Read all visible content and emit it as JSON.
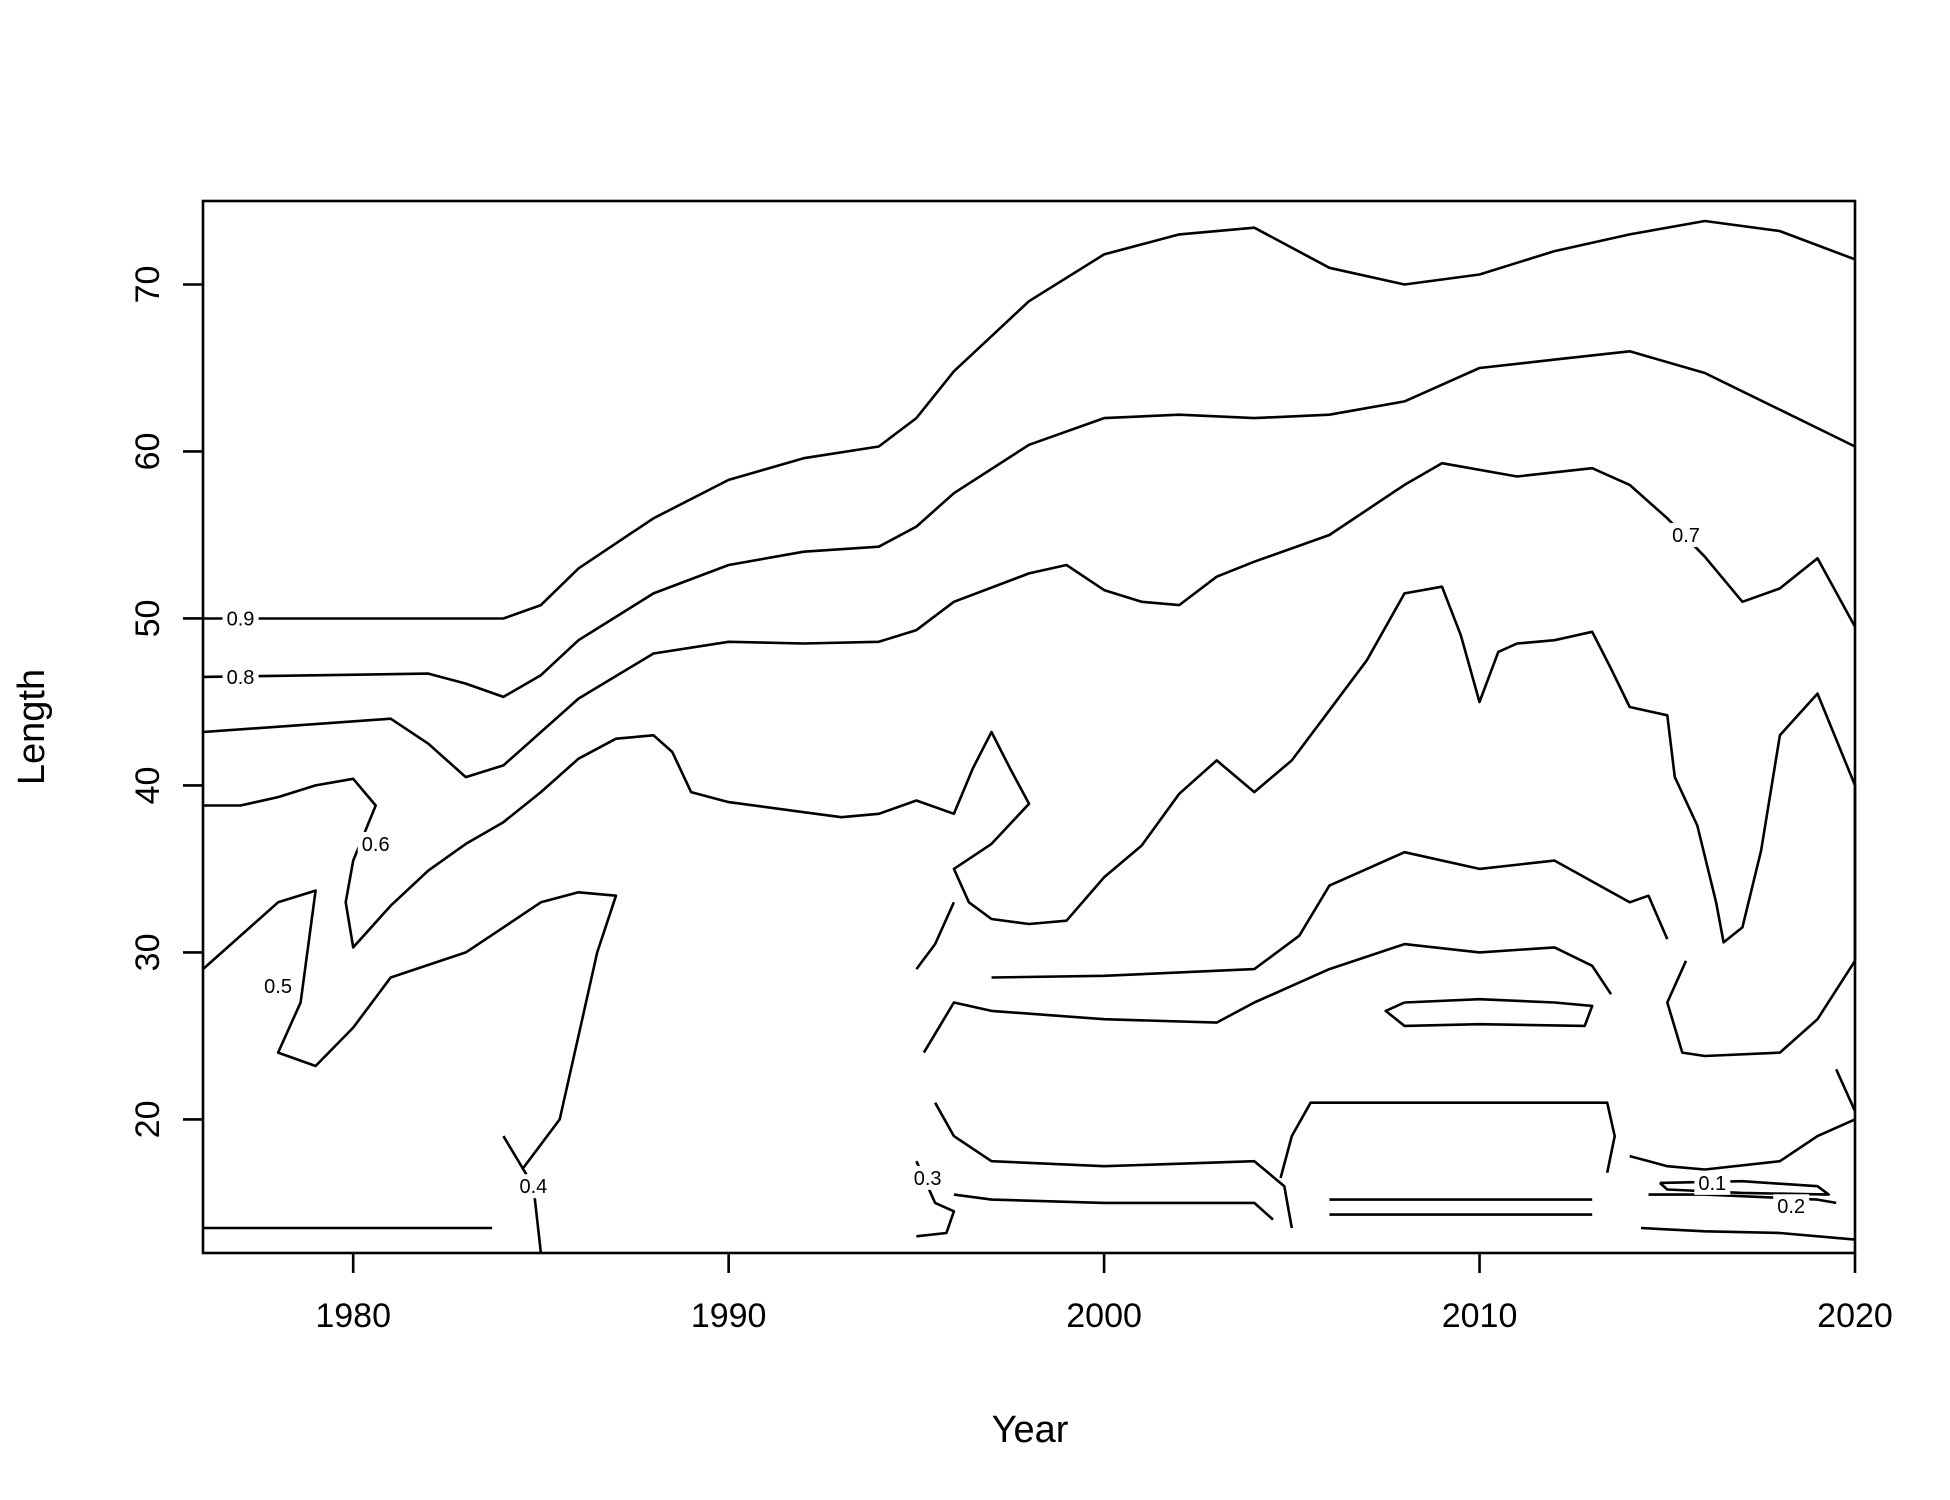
{
  "chart_data": {
    "type": "contour",
    "xlabel": "Year",
    "ylabel": "Length",
    "xlim": [
      1976,
      2020
    ],
    "ylim": [
      12,
      75
    ],
    "x_ticks": [
      1980,
      1990,
      2000,
      2010,
      2020
    ],
    "y_ticks": [
      20,
      30,
      40,
      50,
      60,
      70
    ],
    "levels": [
      {
        "label": "0.9",
        "label_at": [
          1977,
          50
        ],
        "lines": [
          [
            [
              1976,
              50
            ],
            [
              1984,
              50
            ],
            [
              1985,
              50.8
            ],
            [
              1986,
              53
            ],
            [
              1988,
              56
            ],
            [
              1990,
              58.3
            ],
            [
              1992,
              59.6
            ],
            [
              1994,
              60.3
            ],
            [
              1995,
              62
            ],
            [
              1996,
              64.8
            ],
            [
              1998,
              69
            ],
            [
              2000,
              71.8
            ],
            [
              2002,
              73
            ],
            [
              2004,
              73.4
            ],
            [
              2006,
              71
            ],
            [
              2008,
              70
            ],
            [
              2010,
              70.6
            ],
            [
              2012,
              72
            ],
            [
              2014,
              73
            ],
            [
              2016,
              73.8
            ],
            [
              2018,
              73.2
            ],
            [
              2020,
              71.5
            ]
          ],
          [
            [
              1976,
              13.5
            ],
            [
              1983.7,
              13.5
            ]
          ],
          [
            [
              2006,
              15.2
            ],
            [
              2013,
              15.2
            ]
          ]
        ]
      },
      {
        "label": "0.8",
        "label_at": [
          1977,
          46.5
        ],
        "lines": [
          [
            [
              1976,
              46.5
            ],
            [
              1982,
              46.7
            ],
            [
              1983,
              46.1
            ],
            [
              1984,
              45.3
            ],
            [
              1985,
              46.6
            ],
            [
              1986,
              48.7
            ],
            [
              1988,
              51.5
            ],
            [
              1990,
              53.2
            ],
            [
              1992,
              54
            ],
            [
              1994,
              54.3
            ],
            [
              1995,
              55.5
            ],
            [
              1996,
              57.5
            ],
            [
              1998,
              60.4
            ],
            [
              2000,
              62
            ],
            [
              2002,
              62.2
            ],
            [
              2004,
              62
            ],
            [
              2006,
              62.2
            ],
            [
              2008,
              63
            ],
            [
              2010,
              65
            ],
            [
              2012,
              65.5
            ],
            [
              2014,
              66
            ],
            [
              2016,
              64.7
            ],
            [
              2018,
              62.5
            ],
            [
              2020,
              60.3
            ]
          ],
          [
            [
              2006,
              14.3
            ],
            [
              2013,
              14.3
            ]
          ]
        ]
      },
      {
        "label": "0.7",
        "label_at": [
          2015.5,
          55
        ],
        "lines": [
          [
            [
              1976,
              43.2
            ],
            [
              1981,
              44
            ],
            [
              1982,
              42.5
            ],
            [
              1983,
              40.5
            ],
            [
              1984,
              41.2
            ],
            [
              1986,
              45.2
            ],
            [
              1988,
              47.9
            ],
            [
              1990,
              48.6
            ],
            [
              1992,
              48.5
            ],
            [
              1994,
              48.6
            ],
            [
              1995,
              49.3
            ],
            [
              1996,
              51
            ],
            [
              1998,
              52.7
            ],
            [
              1999,
              53.2
            ],
            [
              2000,
              51.7
            ],
            [
              2001,
              51
            ],
            [
              2002,
              50.8
            ],
            [
              2003,
              52.5
            ],
            [
              2004,
              53.4
            ],
            [
              2006,
              55
            ],
            [
              2008,
              58
            ],
            [
              2009,
              59.3
            ],
            [
              2011,
              58.5
            ],
            [
              2013,
              59
            ],
            [
              2014,
              58
            ],
            [
              2015,
              56
            ],
            [
              2016,
              53.7
            ],
            [
              2017,
              51
            ],
            [
              2018,
              51.8
            ],
            [
              2019,
              53.6
            ],
            [
              2020,
              49.5
            ]
          ],
          [
            [
              2004.7,
              16.5
            ],
            [
              2005,
              19
            ],
            [
              2005.5,
              21
            ],
            [
              2013.4,
              21
            ],
            [
              2013.6,
              19
            ],
            [
              2013.4,
              16.8
            ]
          ],
          [
            [
              2014,
              17.8
            ],
            [
              2015,
              17.2
            ],
            [
              2016,
              17
            ],
            [
              2018,
              17.5
            ],
            [
              2019,
              19
            ],
            [
              2020,
              20
            ]
          ]
        ]
      },
      {
        "label": "0.6",
        "label_at": [
          1980.6,
          36.5
        ],
        "lines": [
          [
            [
              1976,
              38.8
            ],
            [
              1977,
              38.8
            ],
            [
              1978,
              39.3
            ],
            [
              1979,
              40
            ],
            [
              1980,
              40.4
            ],
            [
              1980.6,
              38.8
            ],
            [
              1980,
              35.5
            ],
            [
              1979.8,
              33
            ],
            [
              1980,
              30.3
            ],
            [
              1981,
              32.8
            ],
            [
              1982,
              34.9
            ],
            [
              1983,
              36.5
            ],
            [
              1984,
              37.8
            ],
            [
              1985,
              39.6
            ],
            [
              1986,
              41.6
            ],
            [
              1987,
              42.8
            ],
            [
              1988,
              43
            ],
            [
              1988.5,
              42
            ],
            [
              1989,
              39.6
            ],
            [
              1990,
              39
            ],
            [
              1992,
              38.4
            ],
            [
              1993,
              38.1
            ],
            [
              1994,
              38.3
            ],
            [
              1995,
              39.1
            ],
            [
              1996,
              38.3
            ],
            [
              1996.5,
              41
            ],
            [
              1997,
              43.2
            ],
            [
              1997.5,
              41
            ],
            [
              1998,
              38.9
            ],
            [
              1997,
              36.5
            ],
            [
              1996,
              35
            ],
            [
              1996.4,
              33
            ],
            [
              1997,
              32
            ],
            [
              1998,
              31.7
            ],
            [
              1999,
              31.9
            ],
            [
              2000,
              34.5
            ],
            [
              2001,
              36.4
            ],
            [
              2002,
              39.5
            ],
            [
              2003,
              41.5
            ],
            [
              2004,
              39.6
            ],
            [
              2005,
              41.5
            ],
            [
              2006,
              44.5
            ],
            [
              2007,
              47.5
            ],
            [
              2008,
              51.5
            ],
            [
              2009,
              51.9
            ],
            [
              2009.5,
              49
            ],
            [
              2010,
              45
            ],
            [
              2010.5,
              48
            ],
            [
              2011,
              48.5
            ],
            [
              2012,
              48.7
            ],
            [
              2013,
              49.2
            ],
            [
              2013.5,
              47
            ],
            [
              2014,
              44.7
            ],
            [
              2015,
              44.2
            ],
            [
              2015.2,
              40.5
            ],
            [
              2015.8,
              37.6
            ],
            [
              2016.3,
              33
            ],
            [
              2016.5,
              30.6
            ],
            [
              2017,
              31.5
            ],
            [
              2017.5,
              36.1
            ],
            [
              2018,
              43
            ],
            [
              2019,
              45.5
            ],
            [
              2020,
              40
            ],
            [
              2020,
              29.5
            ]
          ],
          [
            [
              1995.2,
              24
            ],
            [
              1996,
              27
            ],
            [
              1997,
              26.5
            ],
            [
              2000,
              26
            ],
            [
              2003,
              25.8
            ],
            [
              2004,
              27
            ],
            [
              2006,
              29
            ],
            [
              2008,
              30.5
            ],
            [
              2010,
              30
            ],
            [
              2012,
              30.3
            ],
            [
              2013,
              29.2
            ],
            [
              2013.5,
              27.5
            ]
          ]
        ]
      },
      {
        "label": "0.5",
        "label_at": [
          1978,
          28
        ],
        "lines": [
          [
            [
              1976,
              29
            ],
            [
              1978,
              33
            ],
            [
              1979,
              33.7
            ],
            [
              1978.6,
              27
            ],
            [
              1978,
              24
            ],
            [
              1979,
              23.2
            ],
            [
              1980,
              25.5
            ],
            [
              1981,
              28.5
            ],
            [
              1983,
              30
            ],
            [
              1984,
              31.5
            ],
            [
              1985,
              33
            ],
            [
              1986,
              33.6
            ],
            [
              1987,
              33.4
            ],
            [
              1986.5,
              30
            ],
            [
              1986,
              25
            ],
            [
              1985.5,
              20
            ],
            [
              1984.5,
              17
            ]
          ],
          [
            [
              1996,
              33
            ],
            [
              1995.5,
              30.5
            ],
            [
              1995,
              29
            ]
          ],
          [
            [
              1997,
              28.5
            ],
            [
              2000,
              28.6
            ],
            [
              2004,
              29
            ],
            [
              2005.2,
              31
            ],
            [
              2006,
              34
            ],
            [
              2007,
              35
            ],
            [
              2008,
              36
            ],
            [
              2010,
              35
            ],
            [
              2012,
              35.5
            ],
            [
              2014,
              33
            ],
            [
              2014.5,
              33.4
            ],
            [
              2015,
              30.8
            ]
          ],
          [
            [
              2015.5,
              29.5
            ],
            [
              2015,
              27
            ],
            [
              2015.4,
              24
            ],
            [
              2016,
              23.8
            ],
            [
              2018,
              24
            ],
            [
              2019,
              26
            ],
            [
              2020,
              29.5
            ]
          ],
          [
            [
              2019.5,
              23
            ],
            [
              2020,
              20.5
            ]
          ]
        ]
      },
      {
        "label": "0.4",
        "label_at": [
          1984.8,
          16
        ],
        "lines": [
          [
            [
              1984,
              19
            ],
            [
              1984.8,
              16
            ],
            [
              1985,
              12
            ]
          ],
          [
            [
              1995.5,
              21
            ],
            [
              1996,
              19
            ],
            [
              1997,
              17.5
            ],
            [
              2000,
              17.2
            ],
            [
              2004,
              17.5
            ],
            [
              2004.8,
              16
            ],
            [
              2005,
              13.5
            ]
          ],
          [
            [
              2008,
              27
            ],
            [
              2010,
              27.2
            ],
            [
              2012,
              27
            ],
            [
              2013,
              26.8
            ],
            [
              2012.8,
              25.6
            ],
            [
              2010,
              25.7
            ],
            [
              2008,
              25.6
            ],
            [
              2007.5,
              26.5
            ],
            [
              2008,
              27
            ]
          ]
        ]
      },
      {
        "label": "0.3",
        "label_at": [
          1995.3,
          16.5
        ],
        "lines": [
          [
            [
              1995,
              17.5
            ],
            [
              1995.5,
              15
            ],
            [
              1996,
              14.5
            ],
            [
              1995.8,
              13.2
            ],
            [
              1995,
              13
            ]
          ],
          [
            [
              1996,
              15.5
            ],
            [
              1997,
              15.2
            ],
            [
              2000,
              15
            ],
            [
              2004,
              15
            ],
            [
              2004.5,
              14
            ]
          ]
        ]
      },
      {
        "label": "0.2",
        "label_at": [
          2018.3,
          14.8
        ],
        "lines": [
          [
            [
              2014.5,
              15.5
            ],
            [
              2016,
              15.5
            ],
            [
              2018,
              15.3
            ],
            [
              2019,
              15.2
            ],
            [
              2019.5,
              15
            ]
          ],
          [
            [
              2014.3,
              13.5
            ],
            [
              2016,
              13.3
            ],
            [
              2018,
              13.2
            ],
            [
              2020,
              12.8
            ]
          ]
        ]
      },
      {
        "label": "0.1",
        "label_at": [
          2016.2,
          16.2
        ],
        "lines": [
          [
            [
              2014.8,
              16.2
            ],
            [
              2017,
              16.3
            ],
            [
              2019,
              16
            ],
            [
              2019.3,
              15.5
            ],
            [
              2017,
              15.6
            ],
            [
              2015,
              15.8
            ],
            [
              2014.8,
              16.2
            ]
          ]
        ]
      }
    ]
  }
}
